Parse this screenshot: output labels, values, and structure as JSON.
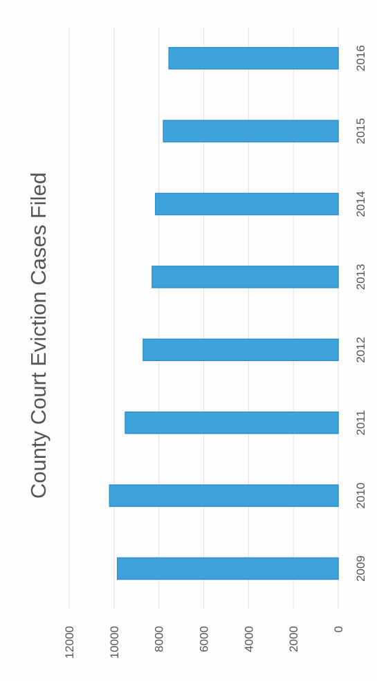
{
  "chart_data": {
    "type": "bar",
    "title": "County Court Eviction Cases Filed",
    "categories": [
      "2009",
      "2010",
      "2011",
      "2012",
      "2013",
      "2014",
      "2015",
      "2016"
    ],
    "values": [
      9850,
      10200,
      9500,
      8700,
      8300,
      8150,
      7800,
      7550
    ],
    "xlabel": "",
    "ylabel": "",
    "ylim": [
      0,
      12000
    ],
    "yticks": [
      0,
      2000,
      4000,
      6000,
      8000,
      10000,
      12000
    ],
    "grid": true,
    "legend": "none",
    "orientation": "rotated-90",
    "colors": {
      "bar": "#3ea3da",
      "bar_edge": "#2f8fc6",
      "grid": "#e2e2e2",
      "text": "#555555"
    }
  }
}
